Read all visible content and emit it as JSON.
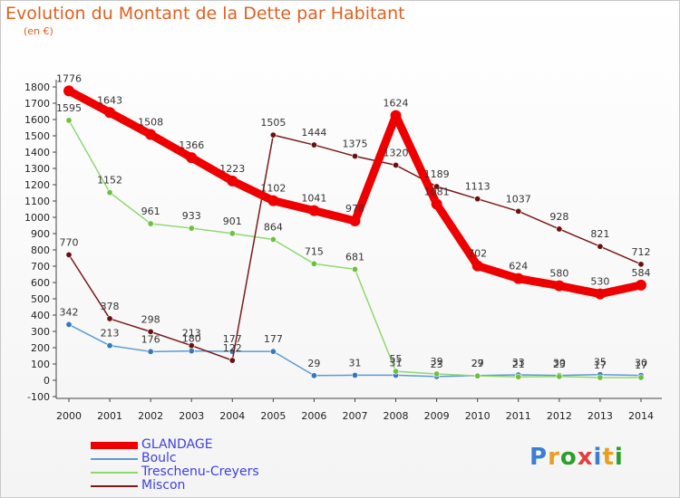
{
  "header": {
    "title": "Evolution du Montant de la Dette par Habitant",
    "unit": "(en €)"
  },
  "logo": {
    "text": "Proxiti",
    "colors": [
      "#3a7fd5",
      "#e8a020",
      "#2a9f2a",
      "#e04040",
      "#3a7fd5",
      "#e8a020",
      "#2a9f2a"
    ]
  },
  "chart_data": {
    "type": "line",
    "categories": [
      "2000",
      "2001",
      "2002",
      "2003",
      "2004",
      "2005",
      "2006",
      "2007",
      "2008",
      "2009",
      "2010",
      "2011",
      "2012",
      "2013",
      "2014"
    ],
    "yticks": [
      "-100",
      "0",
      "100",
      "200",
      "300",
      "400",
      "500",
      "600",
      "700",
      "800",
      "900",
      "1000",
      "1100",
      "1200",
      "1300",
      "1400",
      "1500",
      "1600",
      "1700",
      "1800"
    ],
    "ylim": [
      -100,
      1800
    ],
    "legend_position": "bottom-left",
    "series": [
      {
        "name": "GLANDAGE",
        "color": "#ee0000",
        "dot": "#ee0000",
        "width": 9,
        "values": [
          1776,
          1643,
          1508,
          1366,
          1223,
          1102,
          1041,
          978,
          1624,
          1081,
          702,
          624,
          580,
          530,
          584
        ],
        "labels": [
          "1776",
          "1643",
          "1508",
          "1366",
          "1223",
          "1102",
          "1041",
          "978",
          "1624",
          "1081",
          "702",
          "624",
          "580",
          "530",
          "584"
        ]
      },
      {
        "name": "Boulc",
        "color": "#5b9bd5",
        "dot": "#3a78b8",
        "width": 1.5,
        "values": [
          342,
          213,
          176,
          180,
          177,
          177,
          29,
          31,
          31,
          23,
          29,
          33,
          30,
          35,
          30
        ],
        "labels": [
          "342",
          "213",
          "176",
          "180",
          "177",
          "177",
          "29",
          "31",
          "31",
          "23",
          "29",
          "33",
          "30",
          "35",
          "30"
        ]
      },
      {
        "name": "Treschenu-Creyers",
        "color": "#8fd870",
        "dot": "#6fc040",
        "width": 1.5,
        "values": [
          1595,
          1152,
          961,
          933,
          901,
          864,
          715,
          681,
          55,
          39,
          27,
          21,
          23,
          17,
          17
        ],
        "labels": [
          "1595",
          "1152",
          "961",
          "933",
          "901",
          "864",
          "715",
          "681",
          "55",
          "39",
          "27",
          "21",
          "23",
          "17",
          "17"
        ]
      },
      {
        "name": "Miscon",
        "color": "#7a1a1a",
        "dot": "#6a1010",
        "width": 1.5,
        "values": [
          770,
          378,
          298,
          213,
          122,
          1505,
          1444,
          1375,
          1320,
          1189,
          1113,
          1037,
          928,
          821,
          712
        ],
        "labels": [
          "770",
          "378",
          "298",
          "213",
          "122",
          "1505",
          "1444",
          "1375",
          "1320",
          "1189",
          "1113",
          "1037",
          "928",
          "821",
          "712"
        ]
      }
    ]
  }
}
